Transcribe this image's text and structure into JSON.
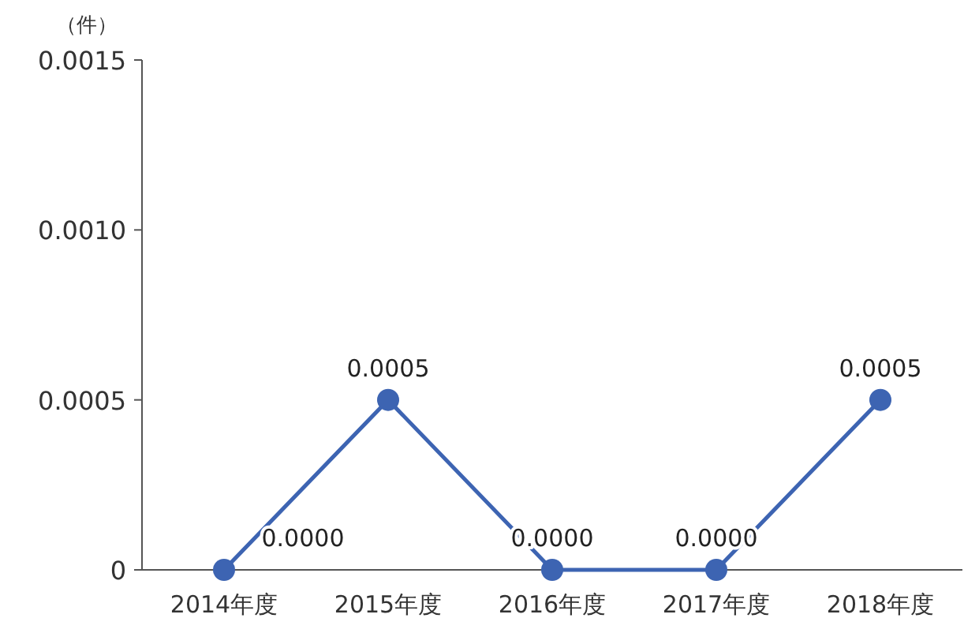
{
  "chart_data": {
    "type": "line",
    "ylabel": "（件）",
    "categories": [
      "2014年度",
      "2015年度",
      "2016年度",
      "2017年度",
      "2018年度"
    ],
    "series": [
      {
        "color": "#3d64b2",
        "values": [
          0,
          0.0005,
          0,
          0,
          0.0005
        ],
        "value_labels": [
          "0.0000",
          "0.0005",
          "0.0000",
          "0.0000",
          "0.0005"
        ]
      }
    ],
    "ylim": [
      0,
      0.0015
    ],
    "yticks": [
      {
        "value": 0,
        "label": "0"
      },
      0.0005,
      {
        "value": 0.001,
        "label": "0.0010"
      },
      0.0015
    ],
    "marker": "circle",
    "line_style": "solid",
    "grid": false
  }
}
